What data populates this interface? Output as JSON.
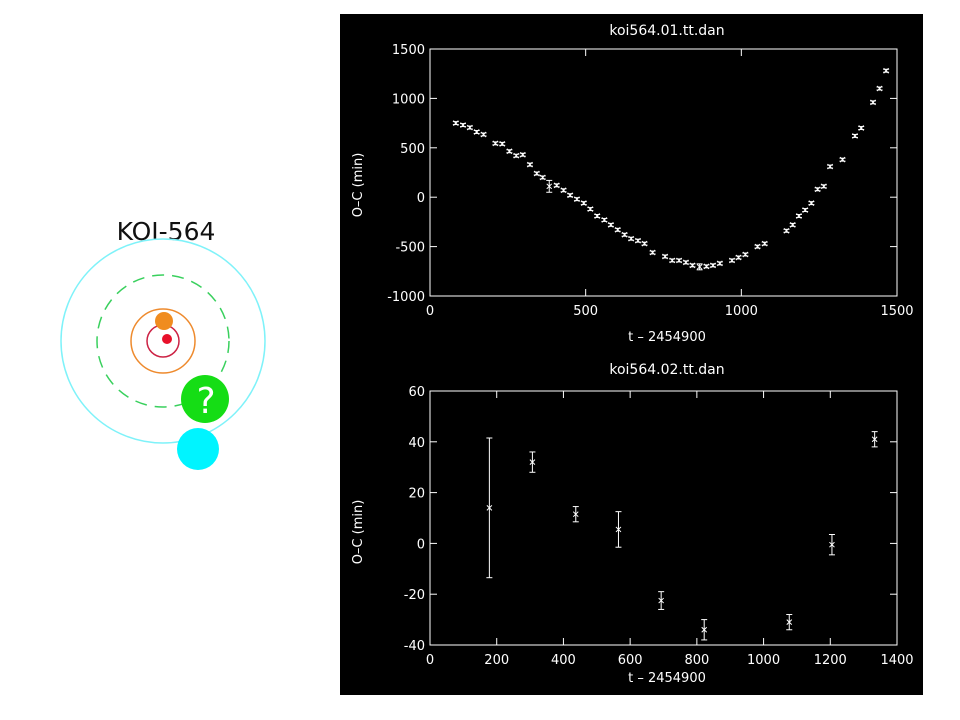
{
  "system": {
    "label": "KOI-564",
    "colors": {
      "orbit_cyan": "#7ff2f9",
      "planet_cyan": "#00f4ff",
      "orbit_green": "#39d05d",
      "planet_green": "#15dd15",
      "orbit_orange": "#ee8a2d",
      "planet_orange": "#f08c1f",
      "orbit_red": "#cc2244",
      "planet_red": "#e8102a"
    },
    "unknown_planet_symbol": "?"
  },
  "chart_data": [
    {
      "type": "scatter",
      "title": "koi564.01.tt.dan",
      "xlabel": "t – 2454900",
      "ylabel": "O–C (min)",
      "xlim": [
        0,
        1500
      ],
      "ylim": [
        -1000,
        1500
      ],
      "xticks": [
        0,
        500,
        1000,
        1500
      ],
      "yticks": [
        -1000,
        -500,
        0,
        500,
        1000,
        1500
      ],
      "grid": false,
      "colors": {
        "background": "#000000",
        "foreground": "#ffffff"
      },
      "points": [
        {
          "x": 83,
          "y": 750,
          "err": 15
        },
        {
          "x": 106,
          "y": 730,
          "err": 15
        },
        {
          "x": 128,
          "y": 705,
          "err": 15
        },
        {
          "x": 150,
          "y": 660,
          "err": 15
        },
        {
          "x": 172,
          "y": 635,
          "err": 15
        },
        {
          "x": 210,
          "y": 545,
          "err": 15
        },
        {
          "x": 232,
          "y": 540,
          "err": 15
        },
        {
          "x": 255,
          "y": 465,
          "err": 15
        },
        {
          "x": 277,
          "y": 420,
          "err": 15
        },
        {
          "x": 298,
          "y": 430,
          "err": 15
        },
        {
          "x": 321,
          "y": 330,
          "err": 15
        },
        {
          "x": 343,
          "y": 240,
          "err": 15
        },
        {
          "x": 362,
          "y": 200,
          "err": 15
        },
        {
          "x": 383,
          "y": 110,
          "err": 60
        },
        {
          "x": 407,
          "y": 120,
          "err": 15
        },
        {
          "x": 429,
          "y": 70,
          "err": 15
        },
        {
          "x": 450,
          "y": 20,
          "err": 15
        },
        {
          "x": 472,
          "y": -20,
          "err": 15
        },
        {
          "x": 494,
          "y": -60,
          "err": 15
        },
        {
          "x": 515,
          "y": -120,
          "err": 15
        },
        {
          "x": 537,
          "y": -190,
          "err": 15
        },
        {
          "x": 560,
          "y": -230,
          "err": 15
        },
        {
          "x": 581,
          "y": -280,
          "err": 15
        },
        {
          "x": 603,
          "y": -330,
          "err": 15
        },
        {
          "x": 625,
          "y": -380,
          "err": 15
        },
        {
          "x": 646,
          "y": -420,
          "err": 15
        },
        {
          "x": 668,
          "y": -440,
          "err": 15
        },
        {
          "x": 689,
          "y": -470,
          "err": 15
        },
        {
          "x": 715,
          "y": -560,
          "err": 15
        },
        {
          "x": 755,
          "y": -600,
          "err": 15
        },
        {
          "x": 778,
          "y": -640,
          "err": 15
        },
        {
          "x": 800,
          "y": -640,
          "err": 15
        },
        {
          "x": 822,
          "y": -660,
          "err": 15
        },
        {
          "x": 843,
          "y": -690,
          "err": 15
        },
        {
          "x": 866,
          "y": -705,
          "err": 30
        },
        {
          "x": 888,
          "y": -700,
          "err": 15
        },
        {
          "x": 909,
          "y": -690,
          "err": 15
        },
        {
          "x": 931,
          "y": -670,
          "err": 15
        },
        {
          "x": 970,
          "y": -640,
          "err": 15
        },
        {
          "x": 991,
          "y": -610,
          "err": 15
        },
        {
          "x": 1013,
          "y": -580,
          "err": 15
        },
        {
          "x": 1052,
          "y": -500,
          "err": 15
        },
        {
          "x": 1075,
          "y": -470,
          "err": 15
        },
        {
          "x": 1145,
          "y": -340,
          "err": 15
        },
        {
          "x": 1165,
          "y": -280,
          "err": 15
        },
        {
          "x": 1185,
          "y": -190,
          "err": 15
        },
        {
          "x": 1205,
          "y": -130,
          "err": 15
        },
        {
          "x": 1225,
          "y": -60,
          "err": 15
        },
        {
          "x": 1245,
          "y": 80,
          "err": 15
        },
        {
          "x": 1265,
          "y": 110,
          "err": 15
        },
        {
          "x": 1285,
          "y": 310,
          "err": 15
        },
        {
          "x": 1325,
          "y": 380,
          "err": 15
        },
        {
          "x": 1365,
          "y": 620,
          "err": 15
        },
        {
          "x": 1385,
          "y": 700,
          "err": 15
        },
        {
          "x": 1423,
          "y": 960,
          "err": 15
        },
        {
          "x": 1444,
          "y": 1100,
          "err": 15
        },
        {
          "x": 1465,
          "y": 1280,
          "err": 15
        }
      ]
    },
    {
      "type": "scatter",
      "title": "koi564.02.tt.dan",
      "xlabel": "t – 2454900",
      "ylabel": "O–C (min)",
      "xlim": [
        0,
        1400
      ],
      "ylim": [
        -40,
        60
      ],
      "xticks": [
        0,
        200,
        400,
        600,
        800,
        1000,
        1200,
        1400
      ],
      "yticks": [
        -40,
        -20,
        0,
        20,
        40,
        60
      ],
      "grid": false,
      "colors": {
        "background": "#000000",
        "foreground": "#ffffff"
      },
      "points": [
        {
          "x": 178,
          "y": 14,
          "err": 27.5
        },
        {
          "x": 307,
          "y": 32,
          "err": 4
        },
        {
          "x": 437,
          "y": 11.5,
          "err": 3
        },
        {
          "x": 565,
          "y": 5.5,
          "err": 7
        },
        {
          "x": 693,
          "y": -22.5,
          "err": 3.5
        },
        {
          "x": 822,
          "y": -34,
          "err": 4
        },
        {
          "x": 1077,
          "y": -31,
          "err": 3
        },
        {
          "x": 1205,
          "y": -0.5,
          "err": 4
        },
        {
          "x": 1333,
          "y": 41,
          "err": 3
        }
      ]
    }
  ]
}
